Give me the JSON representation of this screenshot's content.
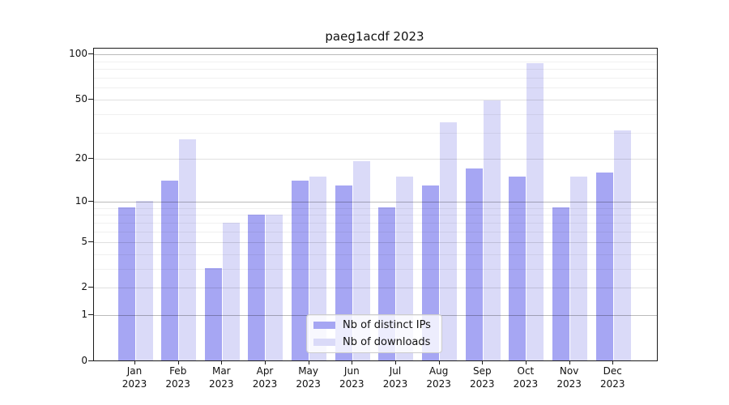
{
  "title": "paeg1acdf 2023",
  "legend": {
    "items": [
      {
        "label": "Nb of distinct IPs",
        "color": "#a6a6f3"
      },
      {
        "label": "Nb of downloads",
        "color": "#dadaf8"
      }
    ]
  },
  "chart_data": {
    "type": "bar",
    "title": "paeg1acdf 2023",
    "categories": [
      "Jan 2023",
      "Feb 2023",
      "Mar 2023",
      "Apr 2023",
      "May 2023",
      "Jun 2023",
      "Jul 2023",
      "Aug 2023",
      "Sep 2023",
      "Oct 2023",
      "Nov 2023",
      "Dec 2023"
    ],
    "series": [
      {
        "name": "Nb of distinct IPs",
        "color": "#a6a6f3",
        "values": [
          9,
          14,
          3,
          8,
          14,
          13,
          9,
          13,
          17,
          15,
          9,
          16
        ]
      },
      {
        "name": "Nb of downloads",
        "color": "#dadaf8",
        "values": [
          10,
          27,
          7,
          8,
          15,
          19,
          15,
          35,
          49,
          87,
          15,
          31
        ]
      }
    ],
    "xlabel": "",
    "ylabel": "",
    "yscale": "log1p",
    "ylim": [
      0,
      110
    ],
    "yticks": [
      0,
      1,
      2,
      5,
      10,
      20,
      50,
      100
    ],
    "grid": true,
    "gridlines": {
      "major": [
        1,
        10,
        100
      ],
      "mid": [
        2,
        5,
        20,
        50
      ],
      "minor": [
        3,
        4,
        6,
        7,
        8,
        9,
        30,
        40,
        60,
        70,
        80,
        90
      ]
    },
    "legend_position": "lower center"
  }
}
